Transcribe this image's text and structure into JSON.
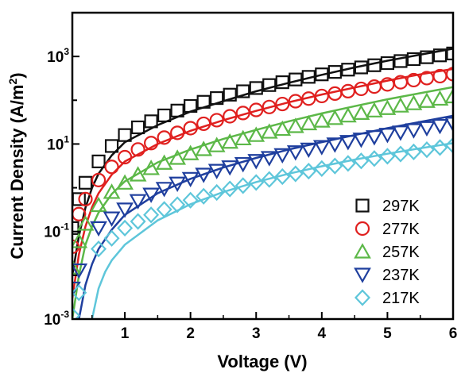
{
  "chart_data": {
    "type": "scatter",
    "title": "",
    "xlabel": "Voltage (V)",
    "ylabel": {
      "prefix": "Current Density (A/m",
      "sup": "2",
      "suffix": ")"
    },
    "xlim": [
      0.2,
      6
    ],
    "ylim": [
      0.001,
      10000
    ],
    "yscale": "log",
    "grid": false,
    "legend_position": "bottom-right",
    "x_ticks": [
      "1",
      "2",
      "3",
      "4",
      "5",
      "6"
    ],
    "y_ticks": [
      {
        "base": "10",
        "exp": "-3"
      },
      {
        "base": "10",
        "exp": "-1"
      },
      {
        "base": "10",
        "exp": "1"
      },
      {
        "base": "10",
        "exp": "3"
      }
    ],
    "series": [
      {
        "name": "297K",
        "marker": "square",
        "color": "#111111",
        "points": [
          [
            0.2,
            0.12
          ],
          [
            0.3,
            0.55
          ],
          [
            0.4,
            1.3
          ],
          [
            0.6,
            4
          ],
          [
            0.8,
            9
          ],
          [
            1.0,
            16
          ],
          [
            1.2,
            24
          ],
          [
            1.4,
            33
          ],
          [
            1.6,
            45
          ],
          [
            1.8,
            58
          ],
          [
            2.0,
            74
          ],
          [
            2.2,
            92
          ],
          [
            2.4,
            112
          ],
          [
            2.6,
            134
          ],
          [
            2.8,
            160
          ],
          [
            3.0,
            190
          ],
          [
            3.2,
            222
          ],
          [
            3.4,
            258
          ],
          [
            3.6,
            298
          ],
          [
            3.8,
            342
          ],
          [
            4.0,
            390
          ],
          [
            4.2,
            443
          ],
          [
            4.4,
            500
          ],
          [
            4.6,
            562
          ],
          [
            4.8,
            630
          ],
          [
            5.0,
            705
          ],
          [
            5.2,
            785
          ],
          [
            5.4,
            870
          ],
          [
            5.6,
            960
          ],
          [
            5.8,
            1060
          ],
          [
            6.0,
            1170
          ]
        ],
        "fit": [
          [
            0.2,
            0.01
          ],
          [
            0.3,
            0.08
          ],
          [
            0.4,
            0.35
          ],
          [
            0.5,
            1.0
          ],
          [
            0.6,
            2.1
          ],
          [
            0.8,
            5.5
          ],
          [
            1.0,
            11
          ],
          [
            1.5,
            27
          ],
          [
            2.0,
            55
          ],
          [
            2.5,
            95
          ],
          [
            3.0,
            160
          ],
          [
            3.5,
            250
          ],
          [
            4.0,
            380
          ],
          [
            4.5,
            560
          ],
          [
            5.0,
            800
          ],
          [
            5.5,
            1100
          ],
          [
            6.0,
            1500
          ]
        ]
      },
      {
        "name": "277K",
        "marker": "circle",
        "color": "#e0201f",
        "points": [
          [
            0.2,
            0.045
          ],
          [
            0.3,
            0.25
          ],
          [
            0.4,
            0.55
          ],
          [
            0.6,
            1.5
          ],
          [
            0.8,
            3.0
          ],
          [
            1.0,
            5.0
          ],
          [
            1.2,
            7.5
          ],
          [
            1.4,
            10.5
          ],
          [
            1.6,
            14
          ],
          [
            1.8,
            18
          ],
          [
            2.0,
            23
          ],
          [
            2.2,
            29
          ],
          [
            2.4,
            35
          ],
          [
            2.6,
            43
          ],
          [
            2.8,
            51
          ],
          [
            3.0,
            60
          ],
          [
            3.2,
            70
          ],
          [
            3.4,
            82
          ],
          [
            3.6,
            95
          ],
          [
            3.8,
            109
          ],
          [
            4.0,
            125
          ],
          [
            4.2,
            142
          ],
          [
            4.4,
            161
          ],
          [
            4.6,
            182
          ],
          [
            4.8,
            205
          ],
          [
            5.0,
            230
          ],
          [
            5.2,
            258
          ],
          [
            5.4,
            288
          ],
          [
            5.6,
            320
          ],
          [
            5.8,
            355
          ],
          [
            6.0,
            395
          ]
        ],
        "fit": [
          [
            0.2,
            0.003
          ],
          [
            0.3,
            0.03
          ],
          [
            0.4,
            0.13
          ],
          [
            0.5,
            0.36
          ],
          [
            0.6,
            0.75
          ],
          [
            0.8,
            2.0
          ],
          [
            1.0,
            4
          ],
          [
            1.5,
            10
          ],
          [
            2.0,
            20
          ],
          [
            2.5,
            35
          ],
          [
            3.0,
            57
          ],
          [
            3.5,
            90
          ],
          [
            4.0,
            135
          ],
          [
            4.5,
            195
          ],
          [
            5.0,
            280
          ],
          [
            5.5,
            390
          ],
          [
            6.0,
            520
          ]
        ]
      },
      {
        "name": "257K",
        "marker": "triangle-up",
        "color": "#5cb848",
        "points": [
          [
            0.2,
            0.015
          ],
          [
            0.3,
            0.06
          ],
          [
            0.4,
            0.15
          ],
          [
            0.6,
            0.4
          ],
          [
            0.8,
            0.8
          ],
          [
            1.0,
            1.3
          ],
          [
            1.2,
            2.0
          ],
          [
            1.4,
            2.8
          ],
          [
            1.6,
            3.7
          ],
          [
            1.8,
            4.8
          ],
          [
            2.0,
            6.1
          ],
          [
            2.2,
            7.6
          ],
          [
            2.4,
            9.3
          ],
          [
            2.6,
            11.2
          ],
          [
            2.8,
            13.4
          ],
          [
            3.0,
            16
          ],
          [
            3.2,
            19
          ],
          [
            3.4,
            22
          ],
          [
            3.6,
            25.5
          ],
          [
            3.8,
            29.5
          ],
          [
            4.0,
            34
          ],
          [
            4.2,
            39
          ],
          [
            4.4,
            44.5
          ],
          [
            4.6,
            51
          ],
          [
            4.8,
            58
          ],
          [
            5.0,
            66
          ],
          [
            5.2,
            75
          ],
          [
            5.4,
            85
          ],
          [
            5.6,
            96
          ],
          [
            5.8,
            108
          ],
          [
            6.0,
            122
          ]
        ],
        "fit": [
          [
            0.2,
            0.001
          ],
          [
            0.3,
            0.01
          ],
          [
            0.4,
            0.05
          ],
          [
            0.5,
            0.13
          ],
          [
            0.6,
            0.27
          ],
          [
            0.8,
            0.72
          ],
          [
            1.0,
            1.4
          ],
          [
            1.5,
            3.8
          ],
          [
            2.0,
            7.5
          ],
          [
            2.5,
            13
          ],
          [
            3.0,
            21
          ],
          [
            3.5,
            33
          ],
          [
            4.0,
            50
          ],
          [
            4.5,
            73
          ],
          [
            5.0,
            105
          ],
          [
            5.5,
            145
          ],
          [
            6.0,
            200
          ]
        ]
      },
      {
        "name": "237K",
        "marker": "triangle-down",
        "color": "#1f3f9e",
        "points": [
          [
            0.2,
            0.005
          ],
          [
            0.3,
            0.013
          ],
          [
            0.6,
            0.12
          ],
          [
            0.8,
            0.2
          ],
          [
            1.0,
            0.32
          ],
          [
            1.2,
            0.5
          ],
          [
            1.4,
            0.7
          ],
          [
            1.6,
            0.95
          ],
          [
            1.8,
            1.25
          ],
          [
            2.0,
            1.6
          ],
          [
            2.2,
            2.0
          ],
          [
            2.4,
            2.45
          ],
          [
            2.6,
            2.95
          ],
          [
            2.8,
            3.5
          ],
          [
            3.0,
            4.1
          ],
          [
            3.2,
            4.8
          ],
          [
            3.4,
            5.6
          ],
          [
            3.6,
            6.5
          ],
          [
            3.8,
            7.5
          ],
          [
            4.0,
            8.6
          ],
          [
            4.2,
            9.8
          ],
          [
            4.4,
            11.2
          ],
          [
            4.6,
            12.7
          ],
          [
            4.8,
            14.4
          ],
          [
            5.0,
            16.3
          ],
          [
            5.2,
            18.4
          ],
          [
            5.4,
            20.7
          ],
          [
            5.6,
            23.2
          ],
          [
            5.8,
            26
          ],
          [
            6.0,
            29
          ]
        ],
        "fit": [
          [
            0.3,
            0.001
          ],
          [
            0.4,
            0.006
          ],
          [
            0.5,
            0.018
          ],
          [
            0.6,
            0.04
          ],
          [
            0.8,
            0.11
          ],
          [
            1.0,
            0.24
          ],
          [
            1.5,
            0.75
          ],
          [
            2.0,
            1.6
          ],
          [
            2.5,
            2.9
          ],
          [
            3.0,
            4.8
          ],
          [
            3.5,
            7.5
          ],
          [
            4.0,
            11
          ],
          [
            4.5,
            16
          ],
          [
            5.0,
            23
          ],
          [
            5.5,
            32
          ],
          [
            6.0,
            44
          ]
        ]
      },
      {
        "name": "217K",
        "marker": "diamond",
        "color": "#5ec6da",
        "points": [
          [
            0.2,
            0.0012
          ],
          [
            0.3,
            0.004
          ],
          [
            0.6,
            0.04
          ],
          [
            0.8,
            0.07
          ],
          [
            1.0,
            0.12
          ],
          [
            1.2,
            0.17
          ],
          [
            1.4,
            0.24
          ],
          [
            1.6,
            0.32
          ],
          [
            1.8,
            0.41
          ],
          [
            2.0,
            0.52
          ],
          [
            2.2,
            0.64
          ],
          [
            2.4,
            0.78
          ],
          [
            2.6,
            0.94
          ],
          [
            2.8,
            1.12
          ],
          [
            3.0,
            1.32
          ],
          [
            3.2,
            1.55
          ],
          [
            3.4,
            1.8
          ],
          [
            3.6,
            2.08
          ],
          [
            3.8,
            2.4
          ],
          [
            4.0,
            2.75
          ],
          [
            4.2,
            3.15
          ],
          [
            4.4,
            3.6
          ],
          [
            4.6,
            4.1
          ],
          [
            4.8,
            4.65
          ],
          [
            5.0,
            5.25
          ],
          [
            5.2,
            5.9
          ],
          [
            5.4,
            6.6
          ],
          [
            5.6,
            7.4
          ],
          [
            5.8,
            8.3
          ],
          [
            6.0,
            9.3
          ]
        ],
        "fit": [
          [
            0.5,
            0.001
          ],
          [
            0.6,
            0.005
          ],
          [
            0.7,
            0.012
          ],
          [
            0.8,
            0.022
          ],
          [
            1.0,
            0.05
          ],
          [
            1.5,
            0.18
          ],
          [
            2.0,
            0.42
          ],
          [
            2.5,
            0.8
          ],
          [
            3.0,
            1.35
          ],
          [
            3.5,
            2.1
          ],
          [
            4.0,
            3.1
          ],
          [
            4.5,
            4.4
          ],
          [
            5.0,
            6.0
          ],
          [
            5.5,
            8.0
          ],
          [
            6.0,
            10.5
          ]
        ]
      }
    ]
  }
}
